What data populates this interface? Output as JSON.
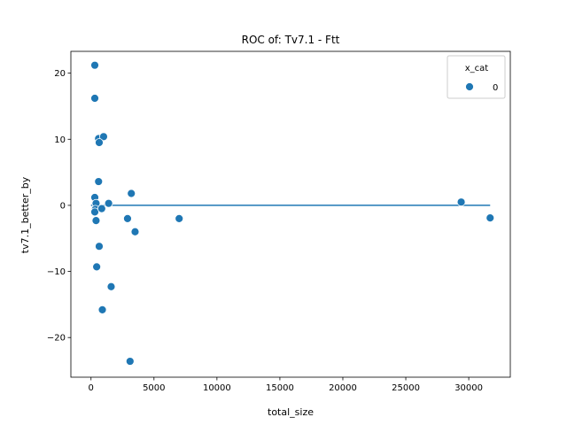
{
  "chart_data": {
    "type": "scatter",
    "title": "ROC of: Tv7.1 - Ftt",
    "xlabel": "total_size",
    "ylabel": "tv7.1_better_by",
    "xlim": [
      -1600,
      33300
    ],
    "ylim": [
      -26,
      23.3
    ],
    "xticks": [
      0,
      5000,
      10000,
      15000,
      20000,
      25000,
      30000
    ],
    "yticks": [
      -20,
      -10,
      0,
      10,
      20
    ],
    "grid": false,
    "legend": {
      "title": "x_cat",
      "placement": "top-right",
      "entries": [
        "0"
      ]
    },
    "series": [
      {
        "name": "0",
        "color": "#1f77b4",
        "points": [
          {
            "x": 300,
            "y": 21.2
          },
          {
            "x": 300,
            "y": 16.2
          },
          {
            "x": 600,
            "y": 10.1
          },
          {
            "x": 1000,
            "y": 10.4
          },
          {
            "x": 650,
            "y": 9.5
          },
          {
            "x": 600,
            "y": 3.6
          },
          {
            "x": 300,
            "y": 1.2
          },
          {
            "x": 400,
            "y": 0.3
          },
          {
            "x": 1400,
            "y": 0.3
          },
          {
            "x": 350,
            "y": -0.6
          },
          {
            "x": 300,
            "y": -1.0
          },
          {
            "x": 850,
            "y": -0.5
          },
          {
            "x": 400,
            "y": -2.3
          },
          {
            "x": 3200,
            "y": 1.8
          },
          {
            "x": 2900,
            "y": -2.0
          },
          {
            "x": 7000,
            "y": -2.0
          },
          {
            "x": 3500,
            "y": -4.0
          },
          {
            "x": 650,
            "y": -6.2
          },
          {
            "x": 450,
            "y": -9.3
          },
          {
            "x": 1600,
            "y": -12.3
          },
          {
            "x": 900,
            "y": -15.8
          },
          {
            "x": 3100,
            "y": -23.6
          },
          {
            "x": 29400,
            "y": 0.5
          },
          {
            "x": 31700,
            "y": -1.9
          }
        ]
      }
    ],
    "reference_line": {
      "y": 0,
      "x_start": 0,
      "x_end": 31700,
      "color": "#1f77b4"
    }
  }
}
